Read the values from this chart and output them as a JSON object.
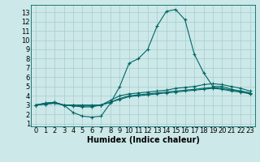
{
  "title": "",
  "xlabel": "Humidex (Indice chaleur)",
  "ylabel": "",
  "background_color": "#cce8e8",
  "grid_color": "#a8cccc",
  "line_color": "#006666",
  "x_ticks": [
    0,
    1,
    2,
    3,
    4,
    5,
    6,
    7,
    8,
    9,
    10,
    11,
    12,
    13,
    14,
    15,
    16,
    17,
    18,
    19,
    20,
    21,
    22,
    23
  ],
  "y_ticks": [
    1,
    2,
    3,
    4,
    5,
    6,
    7,
    8,
    9,
    10,
    11,
    12,
    13
  ],
  "ylim": [
    0.7,
    13.8
  ],
  "xlim": [
    -0.5,
    23.5
  ],
  "line1_x": [
    0,
    1,
    2,
    3,
    4,
    5,
    6,
    7,
    8,
    9,
    10,
    11,
    12,
    13,
    14,
    15,
    16,
    17,
    18,
    19,
    20,
    21,
    22,
    23
  ],
  "line1_y": [
    3.0,
    3.2,
    3.3,
    3.0,
    2.2,
    1.8,
    1.7,
    1.8,
    3.2,
    5.0,
    7.5,
    8.0,
    9.0,
    11.5,
    13.1,
    13.3,
    12.2,
    8.5,
    6.5,
    5.0,
    5.0,
    4.7,
    4.5,
    4.3
  ],
  "line2_x": [
    0,
    1,
    2,
    3,
    4,
    5,
    6,
    7,
    8,
    9,
    10,
    11,
    12,
    13,
    14,
    15,
    16,
    17,
    18,
    19,
    20,
    21,
    22,
    23
  ],
  "line2_y": [
    3.0,
    3.2,
    3.3,
    3.0,
    3.0,
    3.0,
    3.0,
    3.0,
    3.5,
    4.0,
    4.2,
    4.3,
    4.4,
    4.5,
    4.6,
    4.8,
    4.9,
    5.0,
    5.2,
    5.3,
    5.2,
    5.0,
    4.8,
    4.5
  ],
  "line3_x": [
    0,
    1,
    2,
    3,
    4,
    5,
    6,
    7,
    8,
    9,
    10,
    11,
    12,
    13,
    14,
    15,
    16,
    17,
    18,
    19,
    20,
    21,
    22,
    23
  ],
  "line3_y": [
    3.0,
    3.1,
    3.2,
    3.0,
    3.0,
    2.9,
    2.9,
    3.0,
    3.3,
    3.7,
    4.0,
    4.1,
    4.2,
    4.3,
    4.4,
    4.5,
    4.6,
    4.7,
    4.8,
    4.9,
    4.8,
    4.6,
    4.5,
    4.3
  ],
  "line4_x": [
    0,
    1,
    2,
    3,
    4,
    5,
    6,
    7,
    8,
    9,
    10,
    11,
    12,
    13,
    14,
    15,
    16,
    17,
    18,
    19,
    20,
    21,
    22,
    23
  ],
  "line4_y": [
    3.0,
    3.1,
    3.2,
    3.0,
    2.9,
    2.8,
    2.8,
    3.0,
    3.3,
    3.6,
    3.9,
    4.0,
    4.1,
    4.2,
    4.3,
    4.4,
    4.5,
    4.6,
    4.7,
    4.8,
    4.7,
    4.5,
    4.4,
    4.2
  ],
  "tick_fontsize": 6,
  "xlabel_fontsize": 7
}
